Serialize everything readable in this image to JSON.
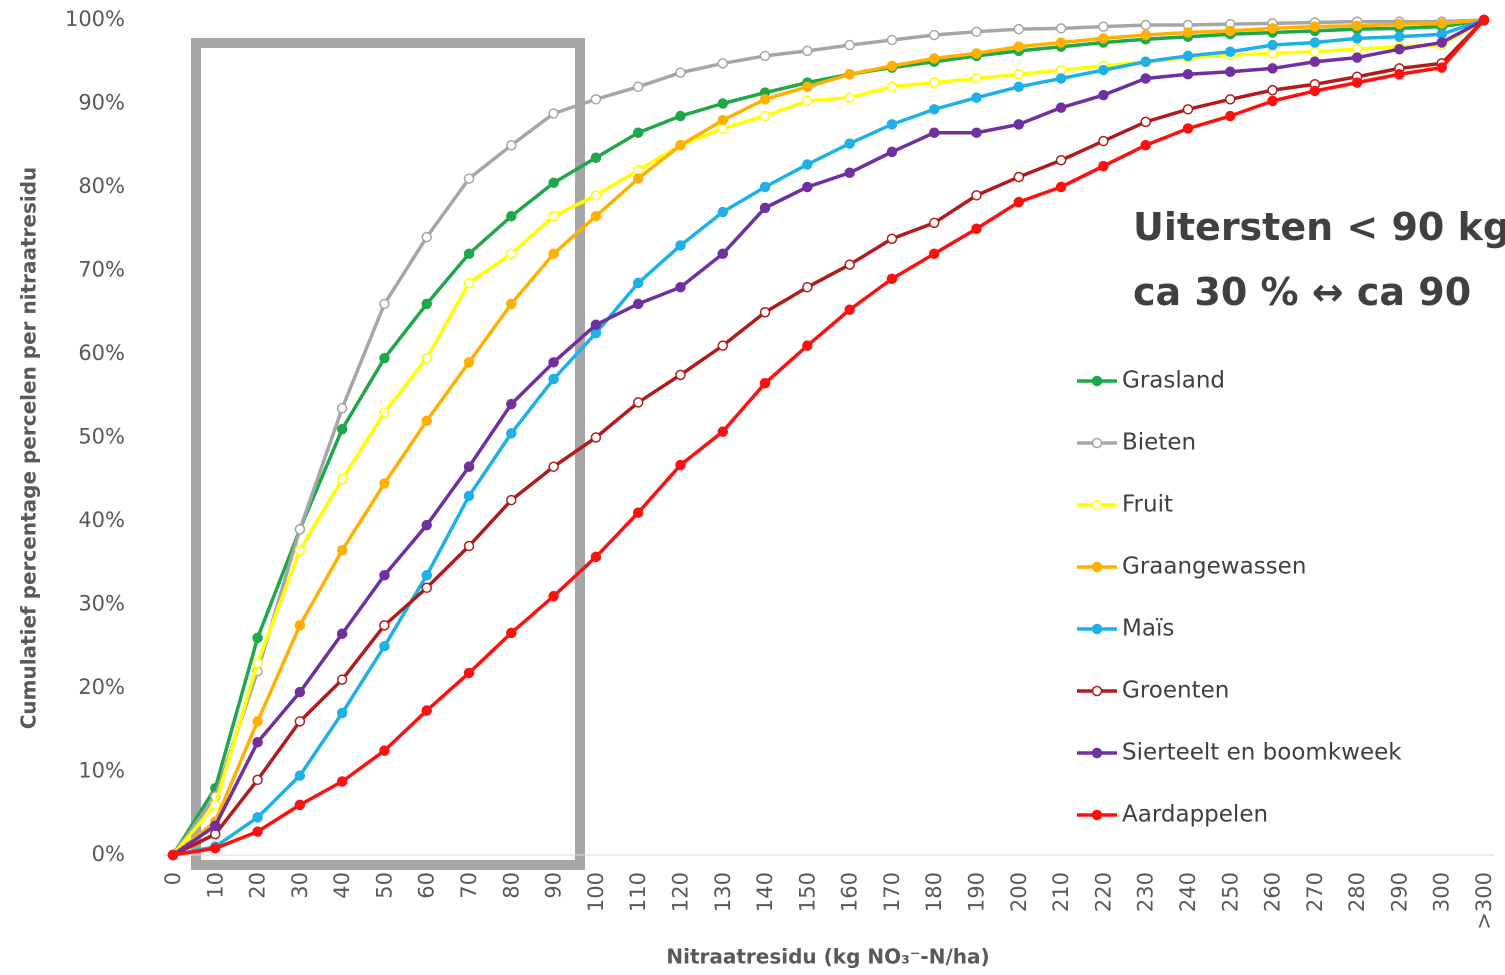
{
  "chart_data": {
    "type": "line",
    "y_label": "Cumulatief percentage percelen per nitraatresidu",
    "x_label": "Nitraatresidu (kg NO₃⁻-N/ha)",
    "annotations": [
      "Uitersten < 90 kg",
      "ca 30 % ↔ ca 90"
    ],
    "categories": [
      "0",
      "10",
      "20",
      "30",
      "40",
      "50",
      "60",
      "70",
      "80",
      "90",
      "100",
      "110",
      "120",
      "130",
      "140",
      "150",
      "160",
      "170",
      "180",
      "190",
      "200",
      "210",
      "220",
      "230",
      "240",
      "250",
      "260",
      "270",
      "280",
      "290",
      "300",
      ">300"
    ],
    "ylim": [
      0,
      100
    ],
    "yticks": [
      {
        "value": 0,
        "label": "0%"
      },
      {
        "value": 10,
        "label": "10%"
      },
      {
        "value": 20,
        "label": "20%"
      },
      {
        "value": 30,
        "label": "30%"
      },
      {
        "value": 40,
        "label": "40%"
      },
      {
        "value": 50,
        "label": "50%"
      },
      {
        "value": 60,
        "label": "60%"
      },
      {
        "value": 70,
        "label": "70%"
      },
      {
        "value": 80,
        "label": "80%"
      },
      {
        "value": 90,
        "label": "90%"
      },
      {
        "value": 100,
        "label": "100%"
      }
    ],
    "grid": false,
    "legend": "right",
    "series": [
      {
        "name": "Grasland",
        "color": "#1ea84a",
        "marker": "filled",
        "values": [
          0,
          8,
          26,
          39,
          51,
          59.5,
          66,
          72,
          76.5,
          80.5,
          83.5,
          86.5,
          88.5,
          90,
          91.3,
          92.5,
          93.5,
          94.3,
          95,
          95.7,
          96.3,
          96.8,
          97.3,
          97.7,
          98,
          98.3,
          98.5,
          98.7,
          98.9,
          99,
          99.2,
          100
        ]
      },
      {
        "name": "Bieten",
        "color": "#a6a6a6",
        "marker": "hollow",
        "values": [
          0,
          7,
          22,
          39,
          53.5,
          66,
          74,
          81,
          85,
          88.8,
          90.5,
          92,
          93.7,
          94.8,
          95.7,
          96.3,
          97,
          97.6,
          98.2,
          98.6,
          98.9,
          99,
          99.2,
          99.4,
          99.4,
          99.5,
          99.6,
          99.7,
          99.8,
          99.8,
          99.8,
          100
        ]
      },
      {
        "name": "Fruit",
        "color": "#ffff00",
        "marker": "hollow",
        "values": [
          0,
          6,
          23,
          36.5,
          45,
          53,
          59.5,
          68.5,
          72,
          76.5,
          79,
          82,
          85,
          87,
          88.5,
          90.3,
          90.7,
          92,
          92.5,
          93,
          93.5,
          94,
          94.5,
          95,
          95.5,
          95.8,
          96,
          96.2,
          96.5,
          96.8,
          97,
          100
        ]
      },
      {
        "name": "Graangewassen",
        "color": "#ffb000",
        "marker": "filled",
        "values": [
          0,
          4,
          16,
          27.5,
          36.5,
          44.5,
          52,
          59,
          66,
          72,
          76.5,
          81,
          85,
          88,
          90.5,
          92,
          93.5,
          94.5,
          95.4,
          96,
          96.8,
          97.3,
          97.8,
          98.2,
          98.5,
          98.7,
          99,
          99.2,
          99.3,
          99.5,
          99.6,
          100
        ]
      },
      {
        "name": "Maïs",
        "color": "#1eb0e6",
        "marker": "filled",
        "values": [
          0,
          1,
          4.5,
          9.5,
          17,
          25,
          33.5,
          43,
          50.5,
          57,
          62.5,
          68.5,
          73,
          77,
          80,
          82.7,
          85.2,
          87.5,
          89.3,
          90.7,
          92,
          93,
          94,
          95,
          95.7,
          96.2,
          97,
          97.3,
          97.8,
          98,
          98.3,
          100
        ]
      },
      {
        "name": "Groenten",
        "color": "#b01c1c",
        "marker": "hollow",
        "values": [
          0,
          2.5,
          9,
          16,
          21,
          27.5,
          32,
          37,
          42.5,
          46.5,
          50,
          54.2,
          57.5,
          61,
          65,
          68,
          70.7,
          73.8,
          75.7,
          79,
          81.2,
          83.2,
          85.5,
          87.8,
          89.3,
          90.5,
          91.6,
          92.3,
          93.2,
          94.2,
          94.8,
          100
        ]
      },
      {
        "name": "Sierteelt en boomkweek",
        "color": "#7030a0",
        "marker": "filled",
        "values": [
          0,
          3.5,
          13.5,
          19.5,
          26.5,
          33.5,
          39.5,
          46.5,
          54,
          59,
          63.5,
          66,
          68,
          72,
          77.5,
          80,
          81.7,
          84.2,
          86.5,
          86.5,
          87.5,
          89.5,
          91,
          93,
          93.5,
          93.8,
          94.2,
          95,
          95.5,
          96.5,
          97.3,
          100
        ]
      },
      {
        "name": "Aardappelen",
        "color": "#ff1010",
        "marker": "filled",
        "values": [
          0,
          0.8,
          2.8,
          6,
          8.8,
          12.5,
          17.3,
          21.8,
          26.6,
          31,
          35.7,
          41,
          46.7,
          50.7,
          56.5,
          61,
          65.3,
          69,
          72,
          75,
          78.2,
          80,
          82.5,
          85,
          87,
          88.5,
          90.3,
          91.5,
          92.5,
          93.5,
          94.3,
          100
        ]
      }
    ]
  }
}
